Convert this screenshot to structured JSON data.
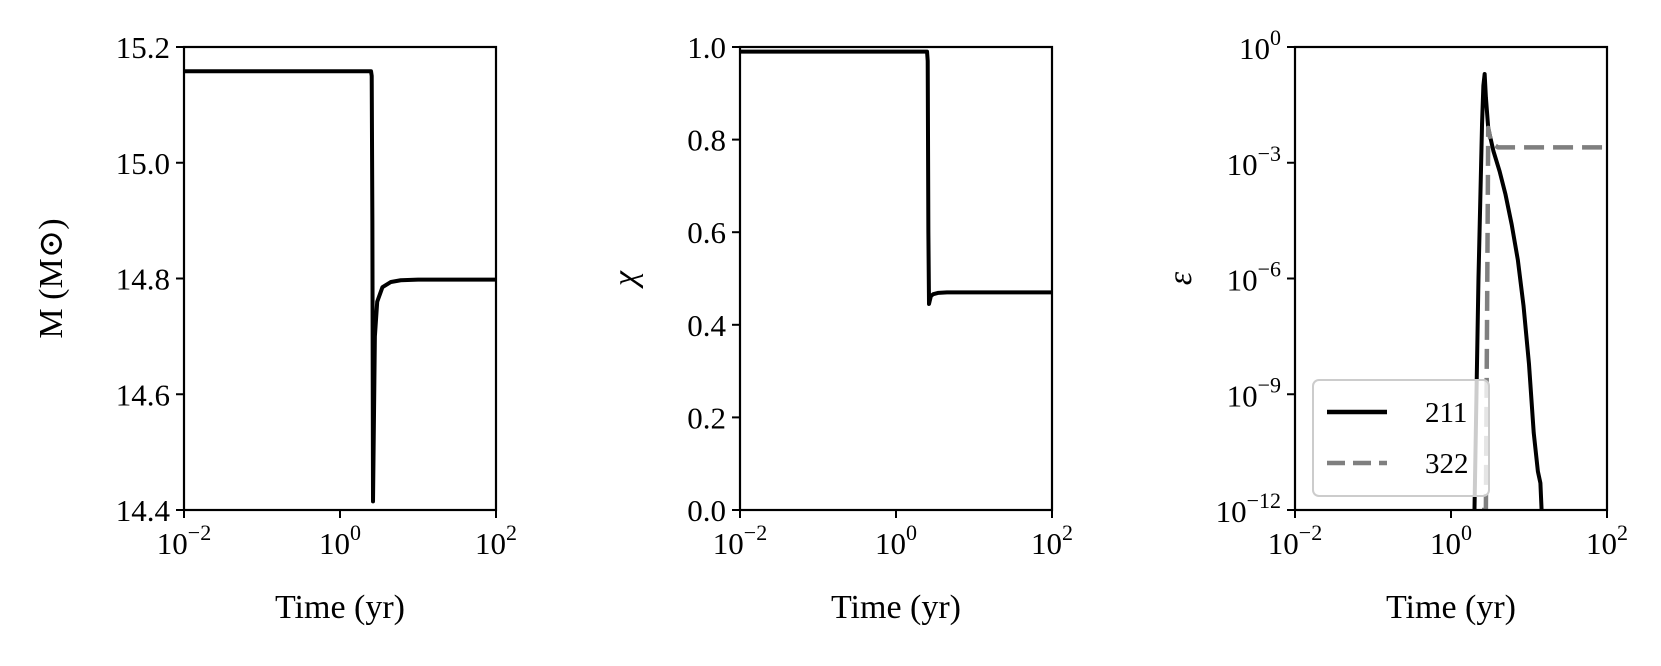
{
  "figure": {
    "background": "#ffffff",
    "line_color": "#000000",
    "dashed_color": "#7f7f7f"
  },
  "chart_data": [
    {
      "type": "line",
      "xlabel": "Time (yr)",
      "ylabel": "M (M⊙)",
      "xscale": "log",
      "xlim": [
        0.01,
        100
      ],
      "ylim": [
        14.4,
        15.2
      ],
      "xticks": [
        {
          "value": 0.01,
          "base": "10",
          "exp": "−2"
        },
        {
          "value": 1,
          "base": "10",
          "exp": "0"
        },
        {
          "value": 100,
          "base": "10",
          "exp": "2"
        }
      ],
      "yticks": [
        {
          "value": 14.4,
          "label": "14.4"
        },
        {
          "value": 14.6,
          "label": "14.6"
        },
        {
          "value": 14.8,
          "label": "14.8"
        },
        {
          "value": 15.0,
          "label": "15.0"
        },
        {
          "value": 15.2,
          "label": "15.2"
        }
      ],
      "series": [
        {
          "color": "#000000",
          "dash": "solid",
          "x": [
            0.01,
            2.5,
            2.55,
            2.6,
            2.65,
            2.8,
            3.0,
            3.5,
            4.5,
            6,
            10,
            100
          ],
          "y": [
            15.158,
            15.158,
            15.15,
            14.9,
            14.415,
            14.7,
            14.76,
            14.785,
            14.794,
            14.797,
            14.798,
            14.798
          ]
        }
      ]
    },
    {
      "type": "line",
      "xlabel": "Time (yr)",
      "ylabel": "χ",
      "xscale": "log",
      "xlim": [
        0.01,
        100
      ],
      "ylim": [
        0,
        1
      ],
      "xticks": [
        {
          "value": 0.01,
          "base": "10",
          "exp": "−2"
        },
        {
          "value": 1,
          "base": "10",
          "exp": "0"
        },
        {
          "value": 100,
          "base": "10",
          "exp": "2"
        }
      ],
      "yticks": [
        {
          "value": 0,
          "label": "0.0"
        },
        {
          "value": 0.2,
          "label": "0.2"
        },
        {
          "value": 0.4,
          "label": "0.4"
        },
        {
          "value": 0.6,
          "label": "0.6"
        },
        {
          "value": 0.8,
          "label": "0.8"
        },
        {
          "value": 1.0,
          "label": "1.0"
        }
      ],
      "series": [
        {
          "color": "#000000",
          "dash": "solid",
          "x": [
            0.01,
            2.5,
            2.55,
            2.6,
            2.65,
            2.8,
            3.0,
            3.5,
            4.5,
            100
          ],
          "y": [
            0.99,
            0.99,
            0.97,
            0.6,
            0.445,
            0.462,
            0.466,
            0.469,
            0.47,
            0.47
          ]
        }
      ]
    },
    {
      "type": "line",
      "xlabel": "Time (yr)",
      "ylabel": "ε",
      "xscale": "log",
      "yscale": "log",
      "xlim": [
        0.01,
        100
      ],
      "ylim": [
        1e-12,
        1
      ],
      "xticks": [
        {
          "value": 0.01,
          "base": "10",
          "exp": "−2"
        },
        {
          "value": 1,
          "base": "10",
          "exp": "0"
        },
        {
          "value": 100,
          "base": "10",
          "exp": "2"
        }
      ],
      "yticks": [
        {
          "value": 1e-12,
          "base": "10",
          "exp": "−12"
        },
        {
          "value": 1e-09,
          "base": "10",
          "exp": "−9"
        },
        {
          "value": 1e-06,
          "base": "10",
          "exp": "−6"
        },
        {
          "value": 0.001,
          "base": "10",
          "exp": "−3"
        },
        {
          "value": 1,
          "base": "10",
          "exp": "0"
        }
      ],
      "legend": {
        "position": "lower-left"
      },
      "series": [
        {
          "name": "211",
          "color": "#000000",
          "dash": "solid",
          "x": [
            2.0,
            2.25,
            2.5,
            2.6,
            2.7,
            2.8,
            3.0,
            3.5,
            4.2,
            5.0,
            6.0,
            7.2,
            8.5,
            10.0,
            11.5,
            13.0,
            14.0,
            14.5
          ],
          "y": [
            1e-12,
            1e-06,
            0.01,
            0.1,
            0.2,
            0.05,
            0.008,
            0.002,
            0.0006,
            0.00015,
            2.5e-05,
            3e-06,
            2e-07,
            6e-09,
            1e-10,
            1e-11,
            5e-12,
            1e-12
          ]
        },
        {
          "name": "322",
          "color": "#7f7f7f",
          "dash": "dashed",
          "x": [
            2.5,
            2.6,
            2.8,
            3.0,
            3.2,
            3.5,
            4.0,
            6.0,
            100
          ],
          "y": [
            1e-12,
            1e-12,
            1e-12,
            0.008,
            0.004,
            0.003,
            0.0025,
            0.0025,
            0.0025
          ]
        }
      ]
    }
  ]
}
